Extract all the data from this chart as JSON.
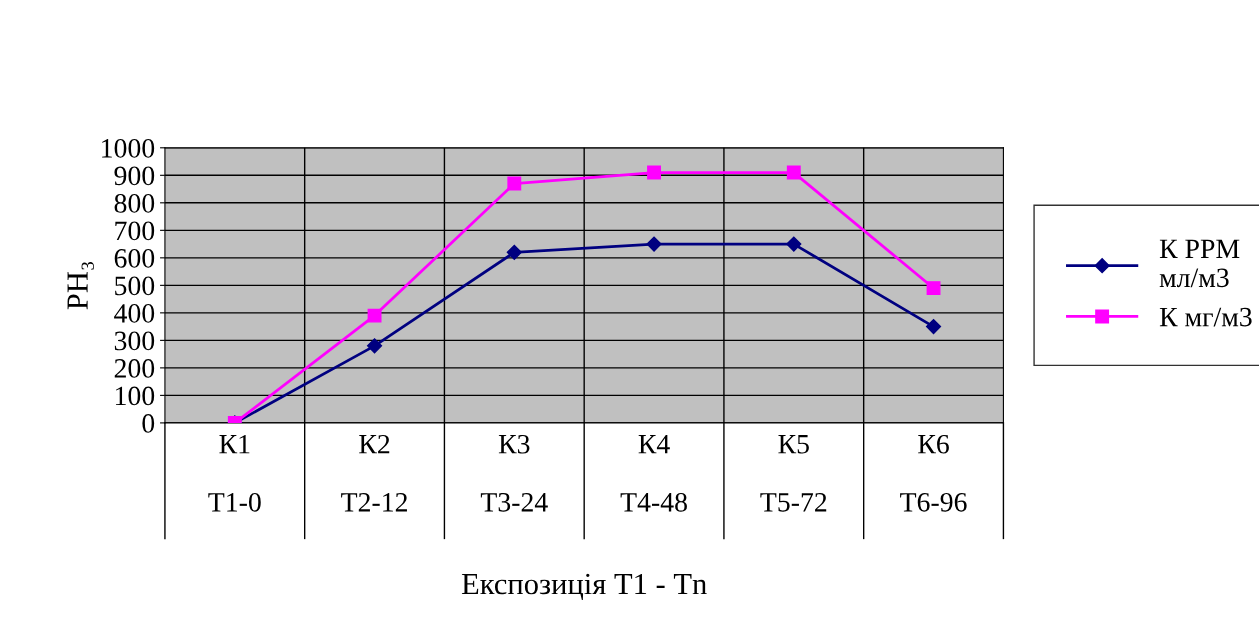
{
  "chart_data": {
    "type": "line",
    "xlabel": "Експозиція Т1 - Тn",
    "ylabel": "PH₃",
    "categories": [
      "К1\n\nТ1-0",
      "К2\n\nТ2-12",
      "К3\n\nТ3-24",
      "К4\n\nТ4-48",
      "К5\n\nТ5-72",
      "К6\n\nТ6-96"
    ],
    "series": [
      {
        "name": "К PPM\nмл/м3",
        "color": "#000080",
        "marker": "diamond",
        "values": [
          0,
          280,
          620,
          650,
          650,
          350
        ]
      },
      {
        "name": "К мг/м3",
        "color": "#ff00ff",
        "marker": "square",
        "values": [
          0,
          390,
          870,
          910,
          910,
          490
        ]
      }
    ],
    "ylim": [
      0,
      1000
    ],
    "yticks": [
      0,
      100,
      200,
      300,
      400,
      500,
      600,
      700,
      800,
      900,
      1000
    ],
    "grid": true,
    "legend": "right"
  }
}
